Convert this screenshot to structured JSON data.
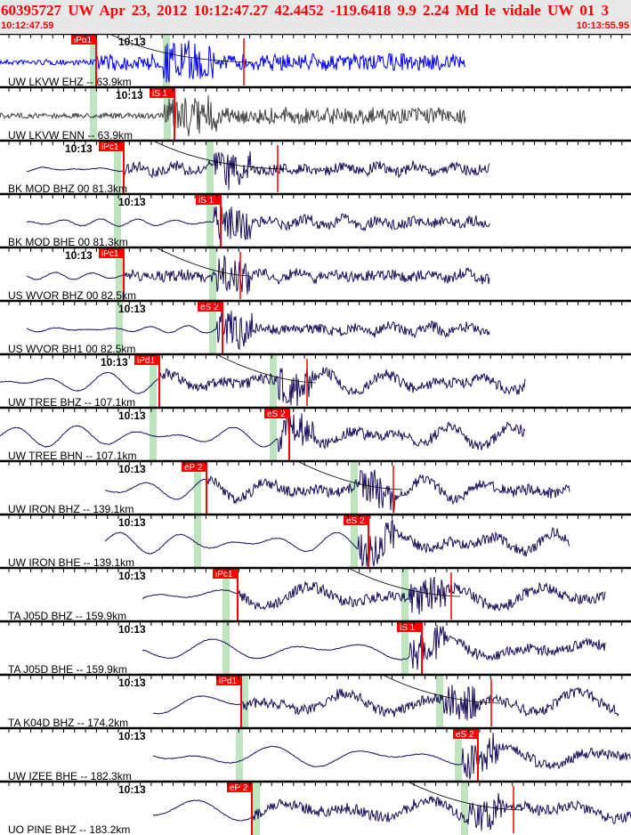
{
  "header": {
    "title": "60395727 UW Apr 23, 2012 10:12:47.27    42.4452 -119.6418  9.9 2.24 Md le vidale UW 01    3",
    "start_time": "10:12:47.59",
    "end_time": "10:13:55.95"
  },
  "minute_label": "10:13",
  "colors": {
    "pick": "#ff0000",
    "band": "#bfe5c0",
    "trace": "#1a0f5c",
    "trace_first": "#0000ff",
    "trace_second": "#404040"
  },
  "traces": [
    {
      "label": "UW LKVW EHZ -- 63.9km",
      "pick": "iPd1"
    },
    {
      "label": "UW LKVW ENN -- 63.9km",
      "pick": "iS 1"
    },
    {
      "label": "BK MOD BHZ 00 81.3km",
      "pick": "iPc1"
    },
    {
      "label": "BK MOD BHE 00 81.3km",
      "pick": "iS 1"
    },
    {
      "label": "US WVOR BHZ 00 82.5km",
      "pick": "iPc1"
    },
    {
      "label": "US WVOR BH1 00 82.5km",
      "pick": "eS 2"
    },
    {
      "label": "UW TREE BHZ -- 107.1km",
      "pick": "iPd1"
    },
    {
      "label": "UW TREE BHN -- 107.1km",
      "pick": "eS 2"
    },
    {
      "label": "UW IRON BHZ -- 139.1km",
      "pick": "eP 2"
    },
    {
      "label": "UW IRON BHE -- 139.1km",
      "pick": "eS 2"
    },
    {
      "label": "TA J05D BHZ -- 159.9km",
      "pick": "iPc1"
    },
    {
      "label": "TA J05D BHE -- 159.9km",
      "pick": "iS 1"
    },
    {
      "label": "TA K04D BHZ -- 174.2km",
      "pick": "iPd1"
    },
    {
      "label": "UW IZEE BHE -- 182.3km",
      "pick": "eS 2"
    },
    {
      "label": "UO PINE BHZ -- 183.2km",
      "pick": "eP 2"
    }
  ]
}
